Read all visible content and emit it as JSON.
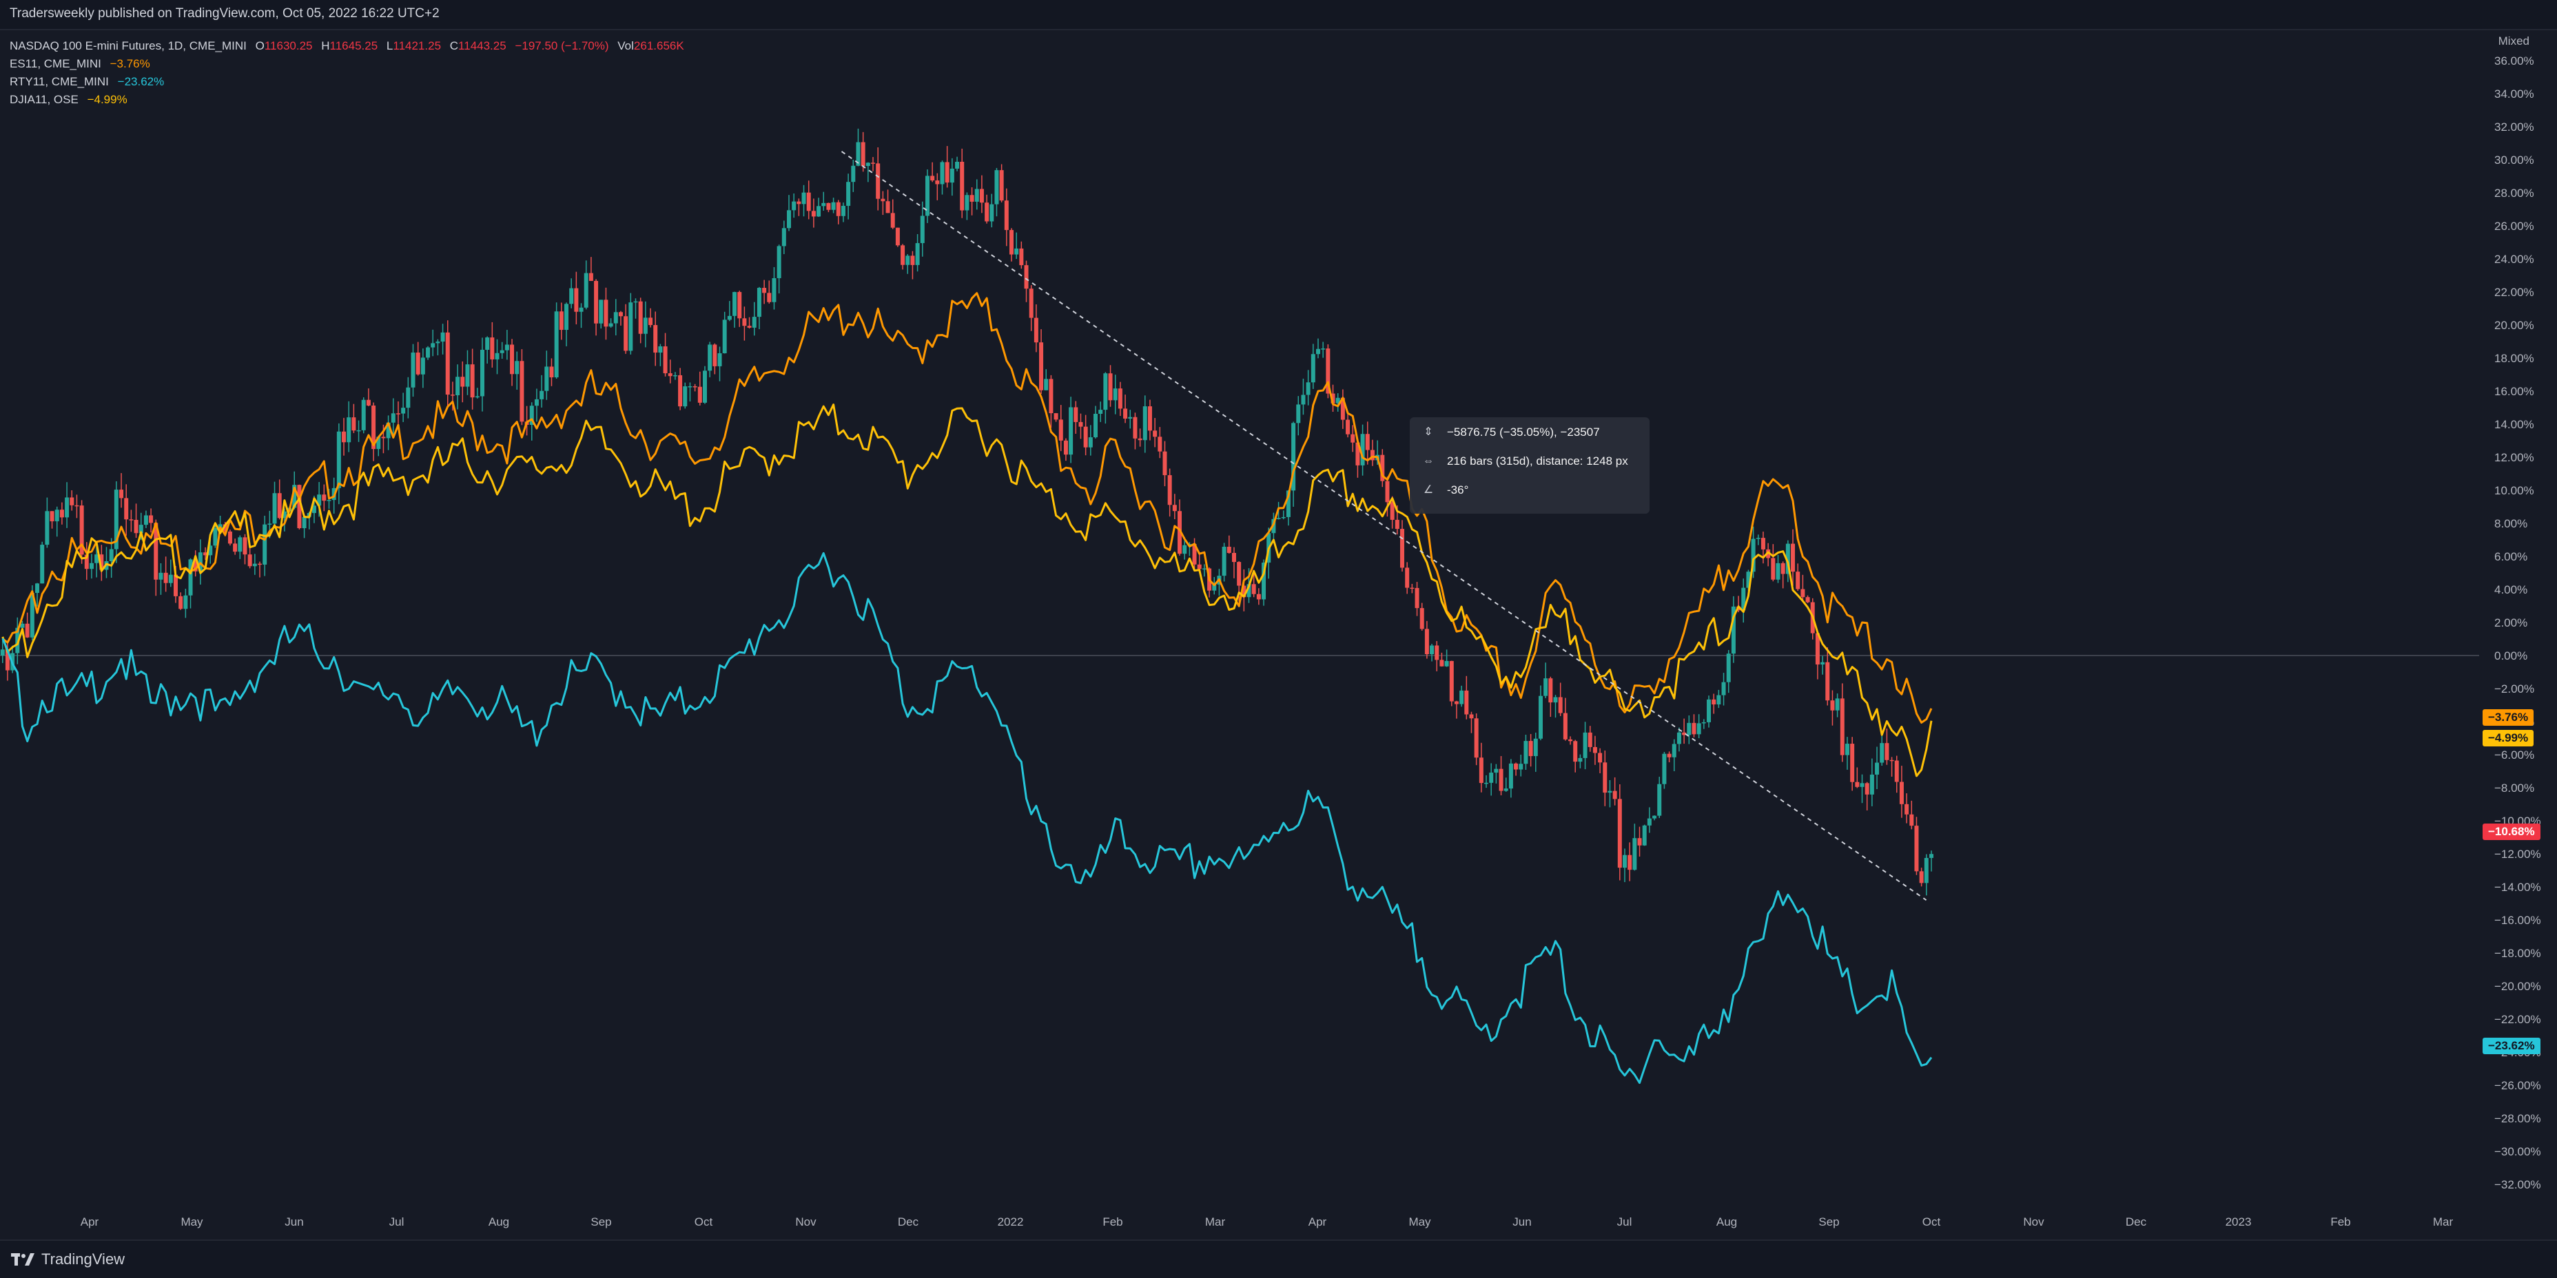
{
  "publisher_line": "Tradersweekly published on TradingView.com, Oct 05, 2022 16:22 UTC+2",
  "brand": "TradingView",
  "legend": {
    "main": {
      "symbol": "NASDAQ 100 E-mini Futures, 1D, CME_MINI",
      "o_key": "O",
      "o_val": "11630.25",
      "h_key": "H",
      "h_val": "11645.25",
      "l_key": "L",
      "l_val": "11421.25",
      "c_key": "C",
      "c_val": "11443.25",
      "chg": "−197.50 (−1.70%)",
      "vol_key": "Vol",
      "vol_val": "261.656K"
    },
    "compare": [
      {
        "symbol": "ES11, CME_MINI",
        "value": "−3.76%",
        "color": "#ff9800"
      },
      {
        "symbol": "RTY11, CME_MINI",
        "value": "−23.62%",
        "color": "#26c6da"
      },
      {
        "symbol": "DJIA11, OSE",
        "value": "−4.99%",
        "color": "#ffc107"
      }
    ]
  },
  "scale_mode": "Mixed",
  "tooltip": {
    "price_change": "−5876.75 (−35.05%), −23507",
    "bars": "216 bars (315d), distance: 1248 px",
    "angle": "-36°"
  },
  "price_tags": [
    {
      "text": "−3.76%",
      "value": -3.76,
      "color": "#ff9800"
    },
    {
      "text": "−4.99%",
      "value": -4.99,
      "color": "#ffc107"
    },
    {
      "text": "−10.68%",
      "value": -10.68,
      "color": "#f23645"
    },
    {
      "text": "−23.62%",
      "value": -23.62,
      "color": "#26c6da"
    }
  ],
  "colors": {
    "up": "#26a69a",
    "down": "#ef5350",
    "es": "#ff9800",
    "rty": "#26c6da",
    "djia": "#ffc107",
    "grid": "#2a2e39"
  },
  "chart_data": {
    "type": "line",
    "title": "NASDAQ 100 E-mini Futures, 1D, CME_MINI",
    "xlabel": "",
    "ylabel": "",
    "y_unit": "%",
    "ylim": [
      -33,
      37
    ],
    "y_ticks": [
      36,
      34,
      32,
      30,
      28,
      26,
      24,
      22,
      20,
      18,
      16,
      14,
      12,
      10,
      8,
      6,
      4,
      2,
      0,
      -2,
      -4,
      -6,
      -8,
      -10,
      -12,
      -14,
      -16,
      -18,
      -20,
      -22,
      -24,
      -26,
      -28,
      -30,
      -32
    ],
    "x_ticks": [
      {
        "label": "Apr",
        "t": 0.0
      },
      {
        "label": "May",
        "t": 1.0
      },
      {
        "label": "Jun",
        "t": 2.0
      },
      {
        "label": "Jul",
        "t": 3.0
      },
      {
        "label": "Aug",
        "t": 4.0
      },
      {
        "label": "Sep",
        "t": 5.0
      },
      {
        "label": "Oct",
        "t": 6.0
      },
      {
        "label": "Nov",
        "t": 7.0
      },
      {
        "label": "Dec",
        "t": 8.0
      },
      {
        "label": "2022",
        "t": 9.0
      },
      {
        "label": "Feb",
        "t": 10.0
      },
      {
        "label": "Mar",
        "t": 11.0
      },
      {
        "label": "Apr",
        "t": 12.0
      },
      {
        "label": "May",
        "t": 13.0
      },
      {
        "label": "Jun",
        "t": 14.0
      },
      {
        "label": "Jul",
        "t": 15.0
      },
      {
        "label": "Aug",
        "t": 16.0
      },
      {
        "label": "Sep",
        "t": 17.0
      },
      {
        "label": "Oct",
        "t": 18.0
      },
      {
        "label": "Nov",
        "t": 19.0
      },
      {
        "label": "Dec",
        "t": 20.0
      },
      {
        "label": "2023",
        "t": 21.0
      },
      {
        "label": "Feb",
        "t": 22.0
      },
      {
        "label": "Mar",
        "t": 23.0
      }
    ],
    "series": [
      {
        "name": "NASDAQ 100 E-mini Futures",
        "style": "candles",
        "points": [
          [
            -0.85,
            0
          ],
          [
            -0.6,
            3
          ],
          [
            -0.4,
            7
          ],
          [
            -0.2,
            8
          ],
          [
            0.0,
            7
          ],
          [
            0.3,
            8
          ],
          [
            0.6,
            6
          ],
          [
            1.0,
            4
          ],
          [
            1.3,
            8
          ],
          [
            1.6,
            7
          ],
          [
            2.0,
            9
          ],
          [
            2.4,
            12
          ],
          [
            2.7,
            14
          ],
          [
            3.0,
            16
          ],
          [
            3.3,
            17
          ],
          [
            3.6,
            18
          ],
          [
            4.0,
            17
          ],
          [
            4.3,
            16
          ],
          [
            4.6,
            19
          ],
          [
            4.9,
            22
          ],
          [
            5.2,
            21
          ],
          [
            5.5,
            18
          ],
          [
            5.8,
            17
          ],
          [
            6.0,
            16
          ],
          [
            6.3,
            20
          ],
          [
            6.6,
            23
          ],
          [
            6.9,
            26
          ],
          [
            7.2,
            28
          ],
          [
            7.5,
            29
          ],
          [
            7.8,
            27
          ],
          [
            8.0,
            25
          ],
          [
            8.3,
            28
          ],
          [
            8.6,
            29
          ],
          [
            8.9,
            27
          ],
          [
            9.0,
            24
          ],
          [
            9.2,
            20
          ],
          [
            9.5,
            14
          ],
          [
            9.8,
            12
          ],
          [
            10.0,
            17
          ],
          [
            10.3,
            14
          ],
          [
            10.6,
            8
          ],
          [
            11.0,
            5
          ],
          [
            11.3,
            3
          ],
          [
            11.6,
            9
          ],
          [
            12.0,
            18
          ],
          [
            12.3,
            15
          ],
          [
            12.6,
            10
          ],
          [
            13.0,
            3
          ],
          [
            13.3,
            -3
          ],
          [
            13.6,
            -6
          ],
          [
            14.0,
            -8
          ],
          [
            14.3,
            -2
          ],
          [
            14.6,
            -6
          ],
          [
            15.0,
            -12
          ],
          [
            15.3,
            -9
          ],
          [
            15.6,
            -5
          ],
          [
            16.0,
            0
          ],
          [
            16.3,
            6
          ],
          [
            16.6,
            7
          ],
          [
            16.8,
            1
          ],
          [
            17.0,
            -4
          ],
          [
            17.3,
            -6
          ],
          [
            17.6,
            -8
          ],
          [
            17.9,
            -12
          ],
          [
            18.0,
            -11
          ]
        ]
      },
      {
        "name": "ES11, CME_MINI",
        "style": "line",
        "points": [
          [
            -0.85,
            0
          ],
          [
            -0.6,
            2
          ],
          [
            -0.4,
            5
          ],
          [
            -0.2,
            6
          ],
          [
            0.0,
            6
          ],
          [
            0.3,
            8
          ],
          [
            0.6,
            7
          ],
          [
            1.0,
            6
          ],
          [
            1.3,
            7
          ],
          [
            1.6,
            8
          ],
          [
            2.0,
            9
          ],
          [
            2.4,
            11
          ],
          [
            2.7,
            12
          ],
          [
            3.0,
            13
          ],
          [
            3.3,
            14
          ],
          [
            3.6,
            14
          ],
          [
            4.0,
            13
          ],
          [
            4.3,
            13
          ],
          [
            4.6,
            15
          ],
          [
            4.9,
            16
          ],
          [
            5.2,
            15
          ],
          [
            5.5,
            13
          ],
          [
            5.8,
            12
          ],
          [
            6.0,
            12
          ],
          [
            6.3,
            15
          ],
          [
            6.6,
            17
          ],
          [
            6.9,
            19
          ],
          [
            7.2,
            20
          ],
          [
            7.5,
            21
          ],
          [
            7.8,
            19
          ],
          [
            8.0,
            18
          ],
          [
            8.3,
            20
          ],
          [
            8.6,
            21
          ],
          [
            8.9,
            20
          ],
          [
            9.0,
            18
          ],
          [
            9.2,
            16
          ],
          [
            9.5,
            12
          ],
          [
            9.8,
            10
          ],
          [
            10.0,
            12
          ],
          [
            10.3,
            10
          ],
          [
            10.6,
            7
          ],
          [
            11.0,
            5
          ],
          [
            11.3,
            4
          ],
          [
            11.6,
            8
          ],
          [
            12.0,
            16
          ],
          [
            12.3,
            14
          ],
          [
            12.6,
            12
          ],
          [
            13.0,
            8
          ],
          [
            13.3,
            3
          ],
          [
            13.6,
            0
          ],
          [
            14.0,
            -2
          ],
          [
            14.3,
            4
          ],
          [
            14.6,
            2
          ],
          [
            15.0,
            -4
          ],
          [
            15.3,
            -1
          ],
          [
            15.6,
            1
          ],
          [
            16.0,
            5
          ],
          [
            16.3,
            9
          ],
          [
            16.6,
            10
          ],
          [
            16.8,
            6
          ],
          [
            17.0,
            3
          ],
          [
            17.3,
            1
          ],
          [
            17.6,
            0
          ],
          [
            17.9,
            -5
          ],
          [
            18.0,
            -3.76
          ]
        ]
      },
      {
        "name": "DJIA11, OSE",
        "style": "line",
        "points": [
          [
            -0.85,
            0
          ],
          [
            -0.6,
            1
          ],
          [
            -0.4,
            4
          ],
          [
            -0.2,
            5
          ],
          [
            0.0,
            6
          ],
          [
            0.3,
            7
          ],
          [
            0.6,
            6
          ],
          [
            1.0,
            6
          ],
          [
            1.3,
            7
          ],
          [
            1.6,
            8
          ],
          [
            2.0,
            8
          ],
          [
            2.4,
            9
          ],
          [
            2.7,
            10
          ],
          [
            3.0,
            11
          ],
          [
            3.3,
            11
          ],
          [
            3.6,
            12
          ],
          [
            4.0,
            11
          ],
          [
            4.3,
            11
          ],
          [
            4.6,
            12
          ],
          [
            4.9,
            13
          ],
          [
            5.2,
            12
          ],
          [
            5.5,
            10
          ],
          [
            5.8,
            9
          ],
          [
            6.0,
            9
          ],
          [
            6.3,
            11
          ],
          [
            6.6,
            12
          ],
          [
            6.9,
            13
          ],
          [
            7.2,
            14
          ],
          [
            7.5,
            14
          ],
          [
            7.8,
            12
          ],
          [
            8.0,
            11
          ],
          [
            8.3,
            13
          ],
          [
            8.6,
            14
          ],
          [
            8.9,
            13
          ],
          [
            9.0,
            12
          ],
          [
            9.2,
            10
          ],
          [
            9.5,
            9
          ],
          [
            9.8,
            8
          ],
          [
            10.0,
            8
          ],
          [
            10.3,
            7
          ],
          [
            10.6,
            5
          ],
          [
            11.0,
            4
          ],
          [
            11.3,
            3
          ],
          [
            11.6,
            6
          ],
          [
            12.0,
            10
          ],
          [
            12.3,
            10
          ],
          [
            12.6,
            9
          ],
          [
            13.0,
            7
          ],
          [
            13.3,
            3
          ],
          [
            13.6,
            0
          ],
          [
            14.0,
            -1
          ],
          [
            14.3,
            2
          ],
          [
            14.6,
            1
          ],
          [
            15.0,
            -4
          ],
          [
            15.3,
            -2
          ],
          [
            15.6,
            -1
          ],
          [
            16.0,
            2
          ],
          [
            16.3,
            5
          ],
          [
            16.6,
            6
          ],
          [
            16.8,
            3
          ],
          [
            17.0,
            0
          ],
          [
            17.3,
            -2
          ],
          [
            17.6,
            -4
          ],
          [
            17.9,
            -8
          ],
          [
            18.0,
            -4.99
          ]
        ]
      },
      {
        "name": "RTY11, CME_MINI",
        "style": "line",
        "points": [
          [
            -0.85,
            0
          ],
          [
            -0.6,
            -4
          ],
          [
            -0.4,
            -2
          ],
          [
            -0.2,
            -3
          ],
          [
            0.0,
            -2
          ],
          [
            0.3,
            0
          ],
          [
            0.6,
            -3
          ],
          [
            1.0,
            -2
          ],
          [
            1.3,
            -4
          ],
          [
            1.6,
            -1
          ],
          [
            2.0,
            1
          ],
          [
            2.4,
            0
          ],
          [
            2.7,
            -3
          ],
          [
            3.0,
            -2
          ],
          [
            3.3,
            -4
          ],
          [
            3.6,
            -2
          ],
          [
            4.0,
            -3
          ],
          [
            4.3,
            -5
          ],
          [
            4.6,
            -2
          ],
          [
            4.9,
            -1
          ],
          [
            5.2,
            -2
          ],
          [
            5.5,
            -4
          ],
          [
            5.8,
            -3
          ],
          [
            6.0,
            -2
          ],
          [
            6.3,
            -1
          ],
          [
            6.6,
            2
          ],
          [
            6.9,
            3
          ],
          [
            7.2,
            6
          ],
          [
            7.5,
            4
          ],
          [
            7.8,
            0
          ],
          [
            8.0,
            -3
          ],
          [
            8.3,
            -2
          ],
          [
            8.6,
            -1
          ],
          [
            8.9,
            -3
          ],
          [
            9.0,
            -5
          ],
          [
            9.2,
            -10
          ],
          [
            9.5,
            -12
          ],
          [
            9.8,
            -14
          ],
          [
            10.0,
            -11
          ],
          [
            10.3,
            -12
          ],
          [
            10.6,
            -13
          ],
          [
            11.0,
            -12
          ],
          [
            11.3,
            -13
          ],
          [
            11.6,
            -10
          ],
          [
            12.0,
            -9
          ],
          [
            12.3,
            -13
          ],
          [
            12.6,
            -15
          ],
          [
            13.0,
            -18
          ],
          [
            13.3,
            -21
          ],
          [
            13.6,
            -23
          ],
          [
            14.0,
            -20
          ],
          [
            14.3,
            -18
          ],
          [
            14.6,
            -22
          ],
          [
            15.0,
            -26
          ],
          [
            15.3,
            -23
          ],
          [
            15.6,
            -25
          ],
          [
            16.0,
            -21
          ],
          [
            16.3,
            -18
          ],
          [
            16.6,
            -14
          ],
          [
            16.8,
            -15
          ],
          [
            17.0,
            -19
          ],
          [
            17.3,
            -21
          ],
          [
            17.6,
            -20
          ],
          [
            17.9,
            -26
          ],
          [
            18.0,
            -23.62
          ]
        ]
      }
    ],
    "trend_line": {
      "from": [
        7.35,
        30.5
      ],
      "to": [
        17.95,
        -14.8
      ]
    }
  }
}
